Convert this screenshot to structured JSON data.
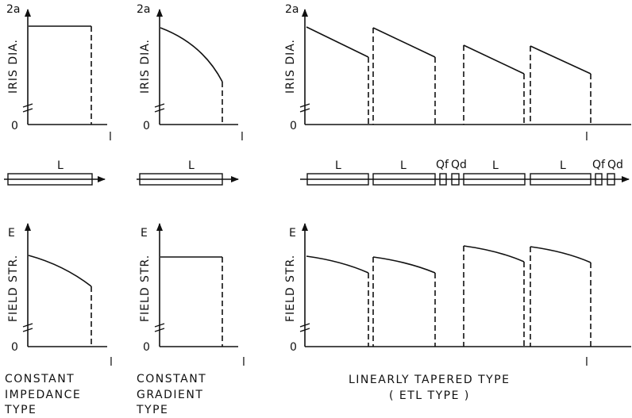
{
  "axis": {
    "y_top": "2a",
    "zero": "0",
    "x": "l",
    "e": "E"
  },
  "ylabels": {
    "iris": "IRIS DIA.",
    "field": "FIELD STR."
  },
  "sections": {
    "L": "L",
    "Qf": "Qf",
    "Qd": "Qd"
  },
  "captions": {
    "impedance": [
      "CONSTANT",
      "IMPEDANCE",
      "TYPE"
    ],
    "gradient": [
      "CONSTANT",
      "GRADIENT",
      "TYPE"
    ],
    "tapered": [
      "LINEARLY TAPERED TYPE",
      "( ETL TYPE )"
    ]
  }
}
